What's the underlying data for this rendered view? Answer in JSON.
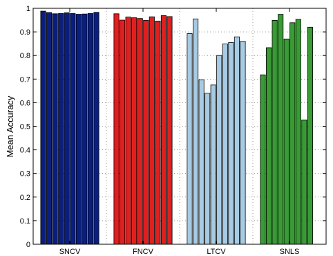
{
  "chart_data": {
    "type": "bar",
    "title": "",
    "xlabel": "",
    "ylabel": "Mean Accuracy",
    "ylim": [
      0,
      1
    ],
    "yticks": [
      "0",
      "0.1",
      "0.2",
      "0.3",
      "0.4",
      "0.5",
      "0.6",
      "0.7",
      "0.8",
      "0.9",
      "1"
    ],
    "grid": "dotted",
    "categories": [
      "SNCV",
      "FNCV",
      "LTCV",
      "SNLS"
    ],
    "groups": [
      {
        "label": "SNCV",
        "color": "#0a1f7d",
        "values": [
          0.988,
          0.982,
          0.977,
          0.978,
          0.981,
          0.978,
          0.975,
          0.976,
          0.978,
          0.983
        ]
      },
      {
        "label": "FNCV",
        "color": "#e01f1f",
        "values": [
          0.977,
          0.95,
          0.963,
          0.96,
          0.957,
          0.949,
          0.964,
          0.946,
          0.969,
          0.965
        ]
      },
      {
        "label": "LTCV",
        "color": "#a6cbe4",
        "values": [
          0.893,
          0.955,
          0.697,
          0.64,
          0.675,
          0.8,
          0.849,
          0.855,
          0.879,
          0.86
        ]
      },
      {
        "label": "SNLS",
        "color": "#3a9a36",
        "values": [
          0.718,
          0.833,
          0.949,
          0.975,
          0.87,
          0.939,
          0.953,
          0.527,
          0.92
        ]
      }
    ]
  }
}
